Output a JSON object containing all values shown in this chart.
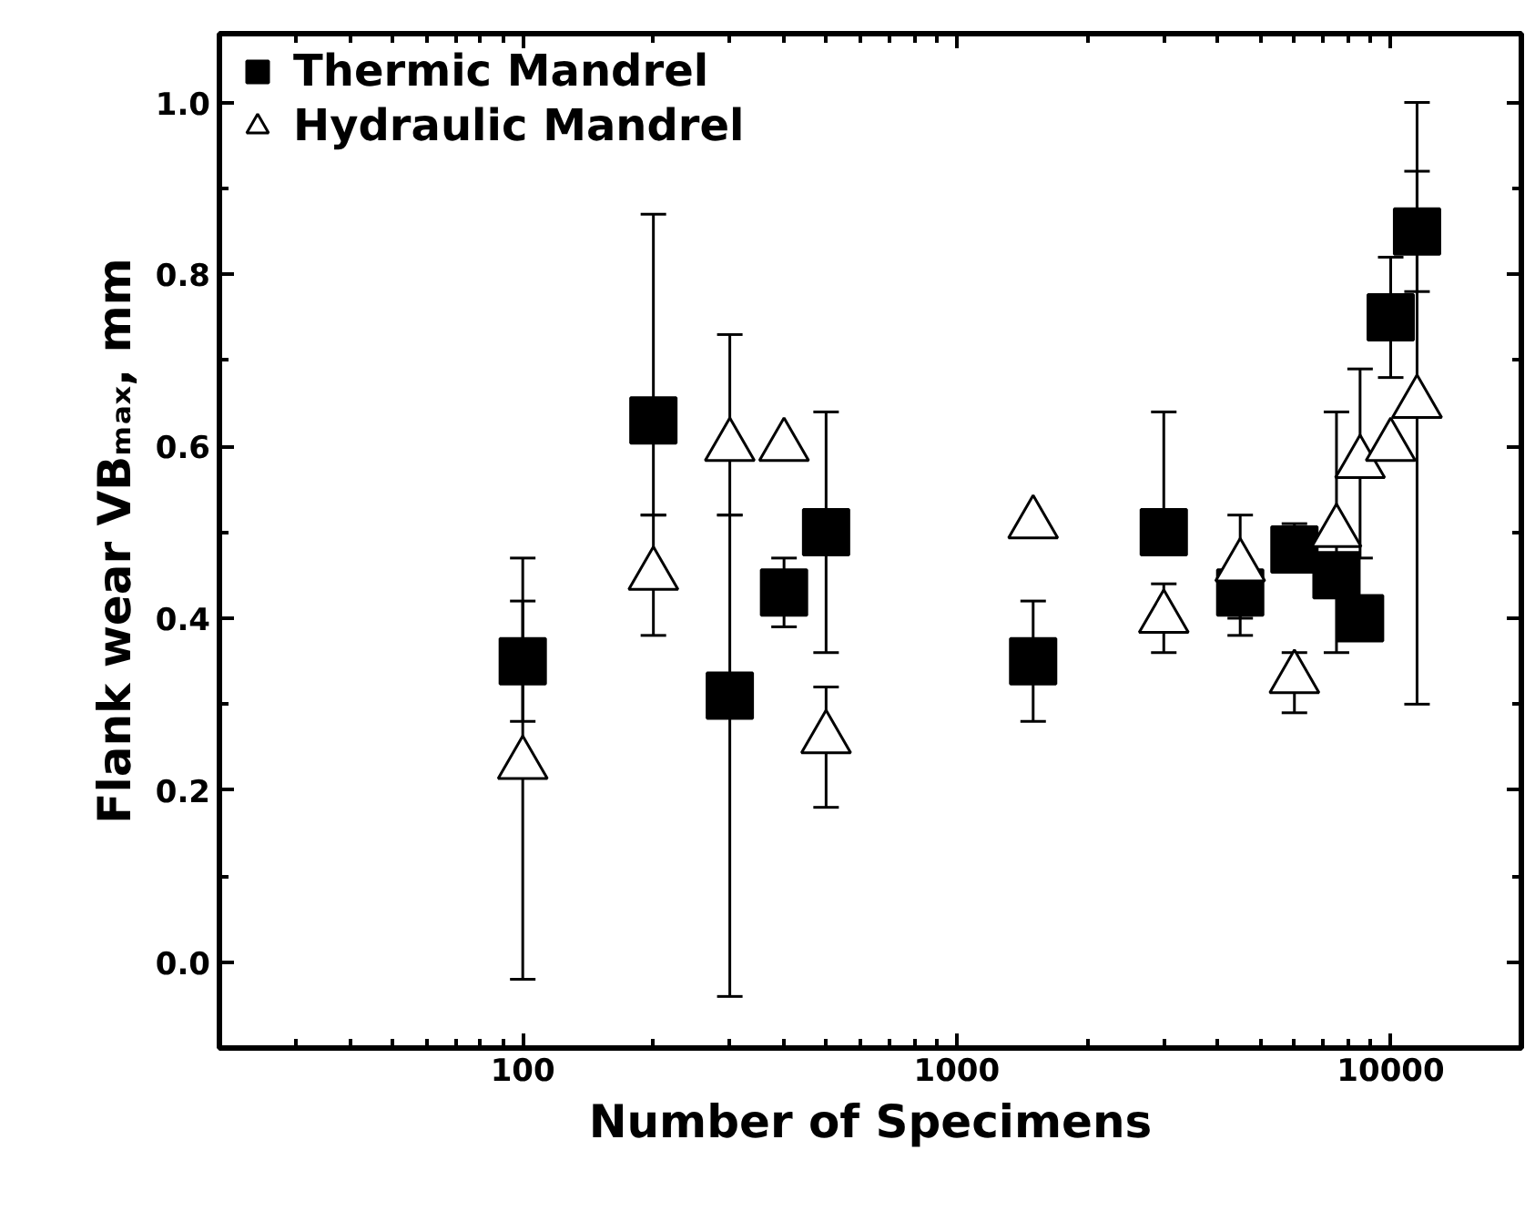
{
  "chart_data": {
    "type": "scatter",
    "xlabel": "Number of Specimens",
    "ylabel": "Flank wear VBₘₐₓ, mm",
    "log": "x",
    "xlim": [
      20,
      20000
    ],
    "xticks": [
      100,
      1000,
      10000
    ],
    "ylim": [
      -0.1,
      1.08
    ],
    "yticks": [
      {
        "value": 0,
        "label": "0.0"
      },
      {
        "value": 0.2,
        "label": "0.2"
      },
      {
        "value": 0.4,
        "label": "0.4"
      },
      {
        "value": 0.6,
        "label": "0.6"
      },
      {
        "value": 0.8,
        "label": "0.8"
      },
      {
        "value": 1.0,
        "label": "1.0"
      }
    ],
    "grid": false,
    "legend": "top left",
    "series": [
      {
        "name": "Thermic Mandrel",
        "color": "#000000",
        "marker": "square",
        "x": [
          100,
          200,
          300,
          400,
          500,
          1500,
          3000,
          4500,
          6000,
          7500,
          8500,
          10000,
          11500
        ],
        "values": [
          0.35,
          0.63,
          0.31,
          0.43,
          0.5,
          0.35,
          0.5,
          0.43,
          0.48,
          0.45,
          0.4,
          0.75,
          0.85
        ],
        "errors": [
          [
            0.28,
            0.47
          ],
          [
            0.52,
            0.87
          ],
          [
            -0.04,
            0.52
          ],
          [
            0.39,
            0.47
          ],
          [
            0.36,
            0.64
          ],
          [
            0.28,
            0.42
          ],
          [
            0.5,
            0.64
          ],
          [
            0.38,
            0.45
          ],
          [
            0.48,
            0.51
          ],
          null,
          null,
          [
            0.68,
            0.82
          ],
          [
            0.78,
            0.92
          ]
        ]
      },
      {
        "name": "Hydraulic Mandrel",
        "color": "#000000",
        "marker": "triangle",
        "x": [
          100,
          200,
          300,
          400,
          500,
          1500,
          3000,
          4500,
          6000,
          7500,
          8500,
          10000,
          11500
        ],
        "values": [
          0.23,
          0.45,
          0.6,
          0.6,
          0.26,
          0.51,
          0.4,
          0.46,
          0.33,
          0.5,
          0.58,
          0.6,
          0.65
        ],
        "errors": [
          [
            -0.02,
            0.42
          ],
          [
            0.38,
            0.52
          ],
          [
            0.52,
            0.73
          ],
          null,
          [
            0.18,
            0.32
          ],
          null,
          [
            0.36,
            0.44
          ],
          [
            0.4,
            0.52
          ],
          [
            0.29,
            0.36
          ],
          [
            0.36,
            0.64
          ],
          [
            0.47,
            0.69
          ],
          null,
          [
            0.3,
            1.0
          ]
        ]
      }
    ]
  }
}
